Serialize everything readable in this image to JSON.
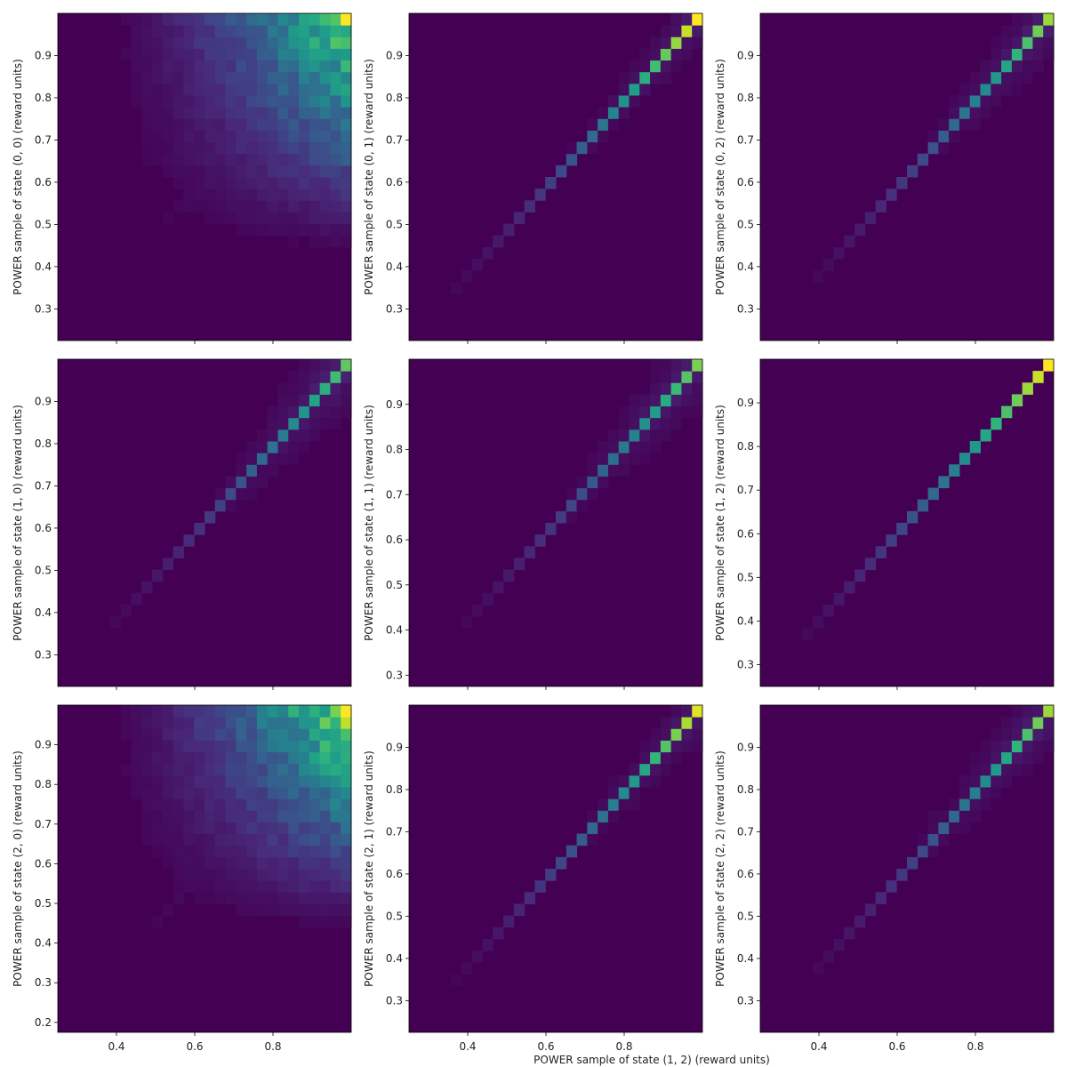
{
  "figure": {
    "xlabel": "POWER sample of state (1, 2) (reward units)",
    "colormap": "viridis"
  },
  "chart_data": [
    {
      "type": "heatmap",
      "ylabel": "POWER sample of state (0, 0) (reward units)",
      "xlim": [
        0.25,
        1.0
      ],
      "ylim": [
        0.225,
        1.0
      ],
      "x_ticks": [
        "0.4",
        "0.6",
        "0.8"
      ],
      "y_ticks": [
        "0.3",
        "0.4",
        "0.5",
        "0.6",
        "0.7",
        "0.8",
        "0.9"
      ],
      "pattern": "broad",
      "spread": 0.55,
      "diag_peak": 0.1
    },
    {
      "type": "heatmap",
      "ylabel": "POWER sample of state (0, 1) (reward units)",
      "xlim": [
        0.25,
        1.0
      ],
      "ylim": [
        0.225,
        1.0
      ],
      "x_ticks": [
        "0.4",
        "0.6",
        "0.8"
      ],
      "y_ticks": [
        "0.3",
        "0.4",
        "0.5",
        "0.6",
        "0.7",
        "0.8",
        "0.9"
      ],
      "pattern": "diagonal",
      "spread": 0.09,
      "diag_peak": 1.0
    },
    {
      "type": "heatmap",
      "ylabel": "POWER sample of state (0, 2) (reward units)",
      "xlim": [
        0.25,
        1.0
      ],
      "ylim": [
        0.225,
        1.0
      ],
      "x_ticks": [
        "0.4",
        "0.6",
        "0.8"
      ],
      "y_ticks": [
        "0.3",
        "0.4",
        "0.5",
        "0.6",
        "0.7",
        "0.8",
        "0.9"
      ],
      "pattern": "diagonal",
      "spread": 0.12,
      "diag_peak": 0.85
    },
    {
      "type": "heatmap",
      "ylabel": "POWER sample of state (1, 0) (reward units)",
      "xlim": [
        0.25,
        1.0
      ],
      "ylim": [
        0.225,
        1.0
      ],
      "x_ticks": [
        "0.4",
        "0.6",
        "0.8"
      ],
      "y_ticks": [
        "0.3",
        "0.4",
        "0.5",
        "0.6",
        "0.7",
        "0.8",
        "0.9"
      ],
      "pattern": "diagonal",
      "spread": 0.16,
      "diag_peak": 0.75
    },
    {
      "type": "heatmap",
      "ylabel": "POWER sample of state (1, 1) (reward units)",
      "xlim": [
        0.25,
        1.0
      ],
      "ylim": [
        0.275,
        1.0
      ],
      "x_ticks": [
        "0.4",
        "0.6",
        "0.8"
      ],
      "y_ticks": [
        "0.3",
        "0.4",
        "0.5",
        "0.6",
        "0.7",
        "0.8",
        "0.9"
      ],
      "pattern": "diagonal",
      "spread": 0.13,
      "diag_peak": 0.8
    },
    {
      "type": "heatmap",
      "ylabel": "POWER sample of state (1, 2) (reward units)",
      "xlim": [
        0.25,
        1.0
      ],
      "ylim": [
        0.25,
        1.0
      ],
      "x_ticks": [
        "0.4",
        "0.6",
        "0.8"
      ],
      "y_ticks": [
        "0.3",
        "0.4",
        "0.5",
        "0.6",
        "0.7",
        "0.8",
        "0.9"
      ],
      "pattern": "identity",
      "spread": 0.0,
      "diag_peak": 1.0
    },
    {
      "type": "heatmap",
      "ylabel": "POWER sample of state (2, 0) (reward units)",
      "xlim": [
        0.25,
        1.0
      ],
      "ylim": [
        0.175,
        1.0
      ],
      "x_ticks": [
        "0.4",
        "0.6",
        "0.8"
      ],
      "y_ticks": [
        "0.2",
        "0.3",
        "0.4",
        "0.5",
        "0.6",
        "0.7",
        "0.8",
        "0.9"
      ],
      "pattern": "broad",
      "spread": 0.6,
      "diag_peak": 0.12
    },
    {
      "type": "heatmap",
      "ylabel": "POWER sample of state (2, 1) (reward units)",
      "xlim": [
        0.25,
        1.0
      ],
      "ylim": [
        0.225,
        1.0
      ],
      "x_ticks": [
        "0.4",
        "0.6",
        "0.8"
      ],
      "y_ticks": [
        "0.3",
        "0.4",
        "0.5",
        "0.6",
        "0.7",
        "0.8",
        "0.9"
      ],
      "pattern": "diagonal",
      "spread": 0.09,
      "diag_peak": 0.95
    },
    {
      "type": "heatmap",
      "ylabel": "POWER sample of state (2, 2) (reward units)",
      "xlim": [
        0.25,
        1.0
      ],
      "ylim": [
        0.225,
        1.0
      ],
      "x_ticks": [
        "0.4",
        "0.6",
        "0.8"
      ],
      "y_ticks": [
        "0.3",
        "0.4",
        "0.5",
        "0.6",
        "0.7",
        "0.8",
        "0.9"
      ],
      "pattern": "diagonal",
      "spread": 0.13,
      "diag_peak": 0.85
    }
  ]
}
